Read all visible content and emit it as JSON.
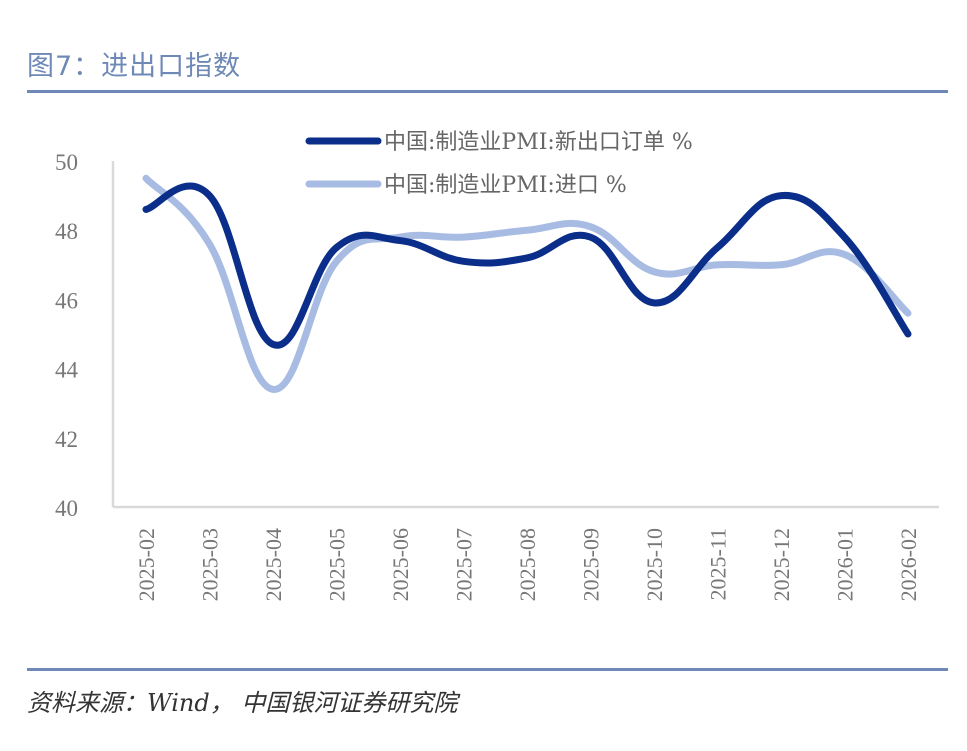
{
  "header": {
    "title": "图7：进出口指数"
  },
  "footer": {
    "source": "资料来源：Wind， 中国银河证券研究院"
  },
  "colors": {
    "accent": "#6f89b6",
    "series1": "#0a2e8a",
    "series2": "#a8bce3",
    "axis": "#d9d9d9"
  },
  "chart_data": {
    "type": "line",
    "title": "图7：进出口指数",
    "xlabel": "",
    "ylabel": "",
    "ylim": [
      40,
      50
    ],
    "yticks": [
      40,
      42,
      44,
      46,
      48,
      50
    ],
    "grid": false,
    "legend_position": "top",
    "categories": [
      "2025-02",
      "2025-03",
      "2025-04",
      "2025-05",
      "2025-06",
      "2025-07",
      "2025-08",
      "2025-09",
      "2025-10",
      "2025-11",
      "2025-12",
      "2026-01",
      "2026-02"
    ],
    "series": [
      {
        "name": "中国:制造业PMI:新出口订单 %",
        "color": "#0a2e8a",
        "values": [
          48.6,
          49.0,
          44.7,
          47.5,
          47.7,
          47.1,
          47.2,
          47.8,
          45.9,
          47.5,
          49.0,
          47.8,
          45.0
        ]
      },
      {
        "name": "中国:制造业PMI:进口 %",
        "color": "#a8bce3",
        "values": [
          49.5,
          47.6,
          43.4,
          47.1,
          47.8,
          47.8,
          48.0,
          48.1,
          46.8,
          47.0,
          47.0,
          47.3,
          45.6
        ]
      }
    ]
  }
}
